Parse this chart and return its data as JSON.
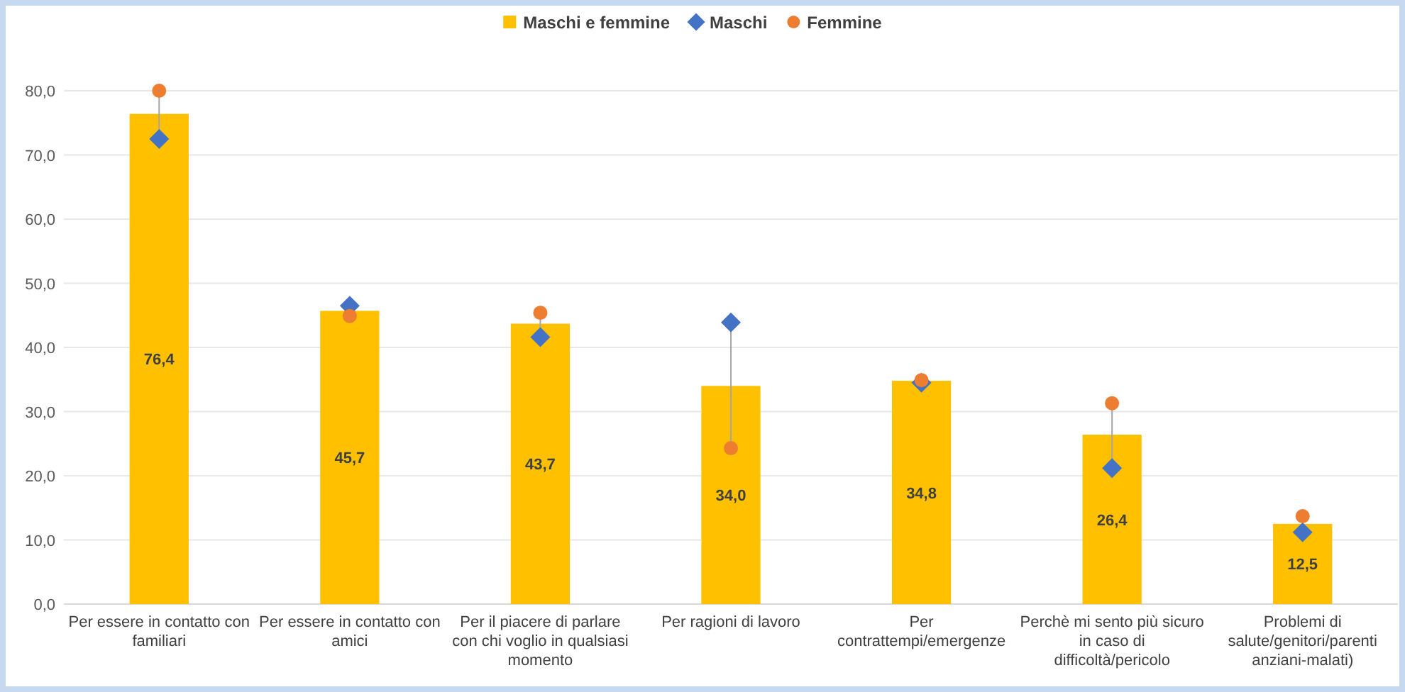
{
  "chart_data": {
    "type": "bar",
    "categories": [
      "Per essere in contatto con familiari",
      "Per essere in contatto con amici",
      "Per il piacere di parlare con chi voglio in qualsiasi momento",
      "Per ragioni di lavoro",
      "Per contrattempi/emergenze",
      "Perchè mi sento più sicuro in caso di difficoltà/pericolo",
      "Problemi di salute/genitori/parenti anziani-malati)"
    ],
    "series": [
      {
        "name": "Maschi e femmine",
        "color": "#ffc000",
        "values": [
          76.4,
          45.7,
          43.7,
          34.0,
          34.8,
          26.4,
          12.5
        ],
        "value_labels": [
          "76,4",
          "45,7",
          "43,7",
          "34,0",
          "34,8",
          "26,4",
          "12,5"
        ]
      },
      {
        "name": "Maschi",
        "type": "scatter",
        "marker": "diamond",
        "color": "#4472c4",
        "values": [
          72.5,
          46.5,
          41.6,
          43.9,
          34.5,
          21.2,
          11.2
        ]
      },
      {
        "name": "Femmine",
        "type": "scatter",
        "marker": "circle",
        "color": "#ed7d31",
        "values": [
          80.0,
          44.9,
          45.4,
          24.3,
          34.9,
          31.3,
          13.7
        ]
      }
    ],
    "ylim": [
      0,
      80
    ],
    "yticks": [
      {
        "value": 0,
        "label": "0,0"
      },
      {
        "value": 10,
        "label": "10,0"
      },
      {
        "value": 20,
        "label": "20,0"
      },
      {
        "value": 30,
        "label": "30,0"
      },
      {
        "value": 40,
        "label": "40,0"
      },
      {
        "value": 50,
        "label": "50,0"
      },
      {
        "value": 60,
        "label": "60,0"
      },
      {
        "value": 70,
        "label": "70,0"
      },
      {
        "value": 80,
        "label": "80,0"
      }
    ],
    "grid": "y",
    "legend": "top"
  }
}
